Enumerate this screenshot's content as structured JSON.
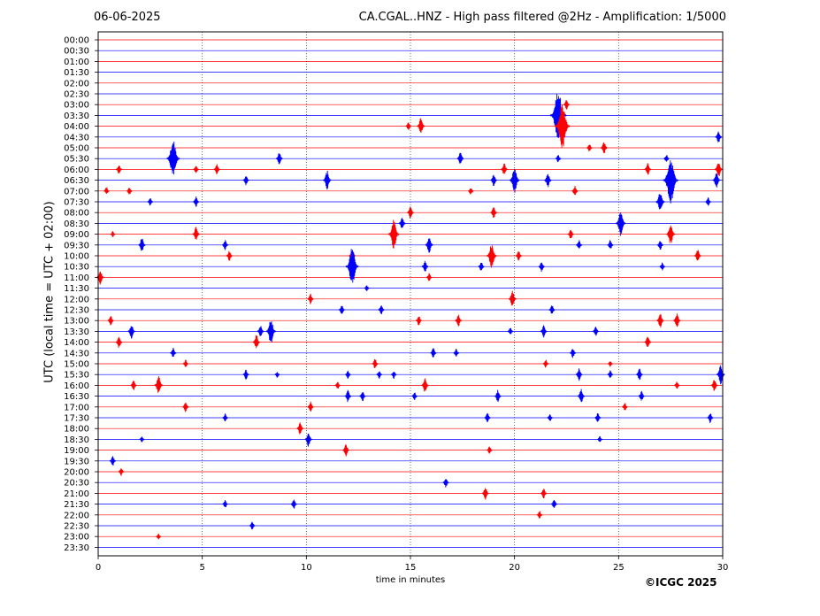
{
  "header": {
    "date": "06-06-2025",
    "title": "CA.CGAL..HNZ - High pass filtered @2Hz - Amplification: 1/5000"
  },
  "footer": {
    "copyright": "©ICGC 2025"
  },
  "chart_data": {
    "type": "line",
    "title": "CA.CGAL..HNZ - High pass filtered @2Hz - Amplification: 1/5000",
    "xlabel": "time in minutes",
    "ylabel": "UTC (local time = UTC + 02:00)",
    "xlim": [
      0,
      30
    ],
    "xticks": [
      0,
      5,
      10,
      15,
      20,
      25,
      30
    ],
    "grid": "vertical dotted lines at 5-minute intervals",
    "row_colors": [
      "#ff0000",
      "#0000ff"
    ],
    "rows": [
      "00:00",
      "00:30",
      "01:00",
      "01:30",
      "02:00",
      "02:30",
      "03:00",
      "03:30",
      "04:00",
      "04:30",
      "05:00",
      "05:30",
      "06:00",
      "06:30",
      "07:00",
      "07:30",
      "08:00",
      "08:30",
      "09:00",
      "09:30",
      "10:00",
      "10:30",
      "11:00",
      "11:30",
      "12:00",
      "12:30",
      "13:00",
      "13:30",
      "14:00",
      "14:30",
      "15:00",
      "15:30",
      "16:00",
      "16:30",
      "17:00",
      "17:30",
      "18:00",
      "18:30",
      "19:00",
      "19:30",
      "20:00",
      "20:30",
      "21:00",
      "21:30",
      "22:00",
      "22:30",
      "23:00",
      "23:30"
    ],
    "events": [
      {
        "row": "03:00",
        "minute": 22.5,
        "amplitude": 0.5
      },
      {
        "row": "03:30",
        "minute": 22.1,
        "amplitude": 2.4
      },
      {
        "row": "04:00",
        "minute": 14.9,
        "amplitude": 0.4
      },
      {
        "row": "04:00",
        "minute": 15.5,
        "amplitude": 0.8
      },
      {
        "row": "04:00",
        "minute": 22.3,
        "amplitude": 2.2
      },
      {
        "row": "04:30",
        "minute": 29.8,
        "amplitude": 0.6
      },
      {
        "row": "05:00",
        "minute": 23.6,
        "amplitude": 0.4
      },
      {
        "row": "05:00",
        "minute": 24.3,
        "amplitude": 0.6
      },
      {
        "row": "05:30",
        "minute": 3.6,
        "amplitude": 1.8
      },
      {
        "row": "05:30",
        "minute": 8.7,
        "amplitude": 0.6
      },
      {
        "row": "05:30",
        "minute": 17.4,
        "amplitude": 0.6
      },
      {
        "row": "05:30",
        "minute": 22.1,
        "amplitude": 0.4
      },
      {
        "row": "05:30",
        "minute": 27.3,
        "amplitude": 0.4
      },
      {
        "row": "06:00",
        "minute": 1.0,
        "amplitude": 0.5
      },
      {
        "row": "06:00",
        "minute": 4.7,
        "amplitude": 0.4
      },
      {
        "row": "06:00",
        "minute": 5.7,
        "amplitude": 0.5
      },
      {
        "row": "06:00",
        "minute": 19.5,
        "amplitude": 0.6
      },
      {
        "row": "06:00",
        "minute": 26.4,
        "amplitude": 0.6
      },
      {
        "row": "06:00",
        "minute": 29.8,
        "amplitude": 0.8
      },
      {
        "row": "06:30",
        "minute": 7.1,
        "amplitude": 0.5
      },
      {
        "row": "06:30",
        "minute": 11.0,
        "amplitude": 0.9
      },
      {
        "row": "06:30",
        "minute": 19.0,
        "amplitude": 0.6
      },
      {
        "row": "06:30",
        "minute": 20.0,
        "amplitude": 1.2
      },
      {
        "row": "06:30",
        "minute": 21.6,
        "amplitude": 0.7
      },
      {
        "row": "06:30",
        "minute": 27.5,
        "amplitude": 2.2
      },
      {
        "row": "06:30",
        "minute": 29.7,
        "amplitude": 0.8
      },
      {
        "row": "07:00",
        "minute": 0.4,
        "amplitude": 0.4
      },
      {
        "row": "07:00",
        "minute": 1.5,
        "amplitude": 0.4
      },
      {
        "row": "07:00",
        "minute": 17.9,
        "amplitude": 0.4
      },
      {
        "row": "07:00",
        "minute": 22.9,
        "amplitude": 0.5
      },
      {
        "row": "07:30",
        "minute": 2.5,
        "amplitude": 0.4
      },
      {
        "row": "07:30",
        "minute": 4.7,
        "amplitude": 0.5
      },
      {
        "row": "07:30",
        "minute": 27.0,
        "amplitude": 1.0
      },
      {
        "row": "07:30",
        "minute": 29.3,
        "amplitude": 0.4
      },
      {
        "row": "08:00",
        "minute": 15.0,
        "amplitude": 0.6
      },
      {
        "row": "08:00",
        "minute": 19.0,
        "amplitude": 0.6
      },
      {
        "row": "08:30",
        "minute": 14.6,
        "amplitude": 0.6
      },
      {
        "row": "08:30",
        "minute": 25.1,
        "amplitude": 1.2
      },
      {
        "row": "09:00",
        "minute": 0.7,
        "amplitude": 0.3
      },
      {
        "row": "09:00",
        "minute": 4.7,
        "amplitude": 0.7
      },
      {
        "row": "09:00",
        "minute": 14.2,
        "amplitude": 1.4
      },
      {
        "row": "09:00",
        "minute": 22.7,
        "amplitude": 0.5
      },
      {
        "row": "09:00",
        "minute": 27.5,
        "amplitude": 1.0
      },
      {
        "row": "09:30",
        "minute": 2.1,
        "amplitude": 0.7
      },
      {
        "row": "09:30",
        "minute": 6.1,
        "amplitude": 0.5
      },
      {
        "row": "09:30",
        "minute": 15.9,
        "amplitude": 0.8
      },
      {
        "row": "09:30",
        "minute": 23.1,
        "amplitude": 0.5
      },
      {
        "row": "09:30",
        "minute": 24.6,
        "amplitude": 0.5
      },
      {
        "row": "09:30",
        "minute": 27.0,
        "amplitude": 0.5
      },
      {
        "row": "10:00",
        "minute": 6.3,
        "amplitude": 0.5
      },
      {
        "row": "10:00",
        "minute": 12.2,
        "amplitude": 0.6
      },
      {
        "row": "10:00",
        "minute": 18.9,
        "amplitude": 1.2
      },
      {
        "row": "10:00",
        "minute": 20.2,
        "amplitude": 0.5
      },
      {
        "row": "10:00",
        "minute": 28.8,
        "amplitude": 0.6
      },
      {
        "row": "10:30",
        "minute": 12.2,
        "amplitude": 1.8
      },
      {
        "row": "10:30",
        "minute": 15.7,
        "amplitude": 0.6
      },
      {
        "row": "10:30",
        "minute": 18.4,
        "amplitude": 0.5
      },
      {
        "row": "10:30",
        "minute": 21.3,
        "amplitude": 0.5
      },
      {
        "row": "10:30",
        "minute": 27.1,
        "amplitude": 0.4
      },
      {
        "row": "11:00",
        "minute": 0.1,
        "amplitude": 0.7
      },
      {
        "row": "11:00",
        "minute": 15.9,
        "amplitude": 0.4
      },
      {
        "row": "11:30",
        "minute": 12.9,
        "amplitude": 0.3
      },
      {
        "row": "12:00",
        "minute": 10.2,
        "amplitude": 0.5
      },
      {
        "row": "12:00",
        "minute": 19.9,
        "amplitude": 0.8
      },
      {
        "row": "12:30",
        "minute": 11.7,
        "amplitude": 0.5
      },
      {
        "row": "12:30",
        "minute": 13.6,
        "amplitude": 0.5
      },
      {
        "row": "12:30",
        "minute": 21.8,
        "amplitude": 0.5
      },
      {
        "row": "13:00",
        "minute": 0.6,
        "amplitude": 0.5
      },
      {
        "row": "13:00",
        "minute": 15.4,
        "amplitude": 0.5
      },
      {
        "row": "13:00",
        "minute": 17.3,
        "amplitude": 0.6
      },
      {
        "row": "13:00",
        "minute": 27.0,
        "amplitude": 0.7
      },
      {
        "row": "13:00",
        "minute": 27.8,
        "amplitude": 0.7
      },
      {
        "row": "13:30",
        "minute": 1.6,
        "amplitude": 0.7
      },
      {
        "row": "13:30",
        "minute": 7.8,
        "amplitude": 0.6
      },
      {
        "row": "13:30",
        "minute": 8.3,
        "amplitude": 1.2
      },
      {
        "row": "13:30",
        "minute": 19.8,
        "amplitude": 0.4
      },
      {
        "row": "13:30",
        "minute": 21.4,
        "amplitude": 0.6
      },
      {
        "row": "13:30",
        "minute": 23.9,
        "amplitude": 0.5
      },
      {
        "row": "14:00",
        "minute": 1.0,
        "amplitude": 0.6
      },
      {
        "row": "14:00",
        "minute": 7.6,
        "amplitude": 0.7
      },
      {
        "row": "14:00",
        "minute": 26.4,
        "amplitude": 0.6
      },
      {
        "row": "14:30",
        "minute": 3.6,
        "amplitude": 0.5
      },
      {
        "row": "14:30",
        "minute": 16.1,
        "amplitude": 0.5
      },
      {
        "row": "14:30",
        "minute": 17.2,
        "amplitude": 0.4
      },
      {
        "row": "14:30",
        "minute": 22.8,
        "amplitude": 0.5
      },
      {
        "row": "15:00",
        "minute": 4.2,
        "amplitude": 0.4
      },
      {
        "row": "15:00",
        "minute": 13.3,
        "amplitude": 0.5
      },
      {
        "row": "15:00",
        "minute": 21.5,
        "amplitude": 0.4
      },
      {
        "row": "15:00",
        "minute": 24.6,
        "amplitude": 0.3
      },
      {
        "row": "15:30",
        "minute": 7.1,
        "amplitude": 0.5
      },
      {
        "row": "15:30",
        "minute": 8.6,
        "amplitude": 0.3
      },
      {
        "row": "15:30",
        "minute": 12.0,
        "amplitude": 0.4
      },
      {
        "row": "15:30",
        "minute": 13.5,
        "amplitude": 0.4
      },
      {
        "row": "15:30",
        "minute": 14.2,
        "amplitude": 0.4
      },
      {
        "row": "15:30",
        "minute": 23.1,
        "amplitude": 0.6
      },
      {
        "row": "15:30",
        "minute": 24.6,
        "amplitude": 0.4
      },
      {
        "row": "15:30",
        "minute": 26.0,
        "amplitude": 0.6
      },
      {
        "row": "15:30",
        "minute": 29.9,
        "amplitude": 0.9
      },
      {
        "row": "16:00",
        "minute": 1.7,
        "amplitude": 0.5
      },
      {
        "row": "16:00",
        "minute": 2.9,
        "amplitude": 0.9
      },
      {
        "row": "16:00",
        "minute": 11.5,
        "amplitude": 0.4
      },
      {
        "row": "16:00",
        "minute": 15.7,
        "amplitude": 0.7
      },
      {
        "row": "16:00",
        "minute": 27.8,
        "amplitude": 0.4
      },
      {
        "row": "16:00",
        "minute": 29.6,
        "amplitude": 0.6
      },
      {
        "row": "16:30",
        "minute": 12.0,
        "amplitude": 0.6
      },
      {
        "row": "16:30",
        "minute": 12.7,
        "amplitude": 0.5
      },
      {
        "row": "16:30",
        "minute": 15.2,
        "amplitude": 0.4
      },
      {
        "row": "16:30",
        "minute": 19.2,
        "amplitude": 0.6
      },
      {
        "row": "16:30",
        "minute": 23.2,
        "amplitude": 0.7
      },
      {
        "row": "16:30",
        "minute": 26.1,
        "amplitude": 0.5
      },
      {
        "row": "17:00",
        "minute": 4.2,
        "amplitude": 0.5
      },
      {
        "row": "17:00",
        "minute": 10.2,
        "amplitude": 0.5
      },
      {
        "row": "17:00",
        "minute": 25.3,
        "amplitude": 0.4
      },
      {
        "row": "17:30",
        "minute": 6.1,
        "amplitude": 0.4
      },
      {
        "row": "17:30",
        "minute": 18.7,
        "amplitude": 0.5
      },
      {
        "row": "17:30",
        "minute": 21.7,
        "amplitude": 0.4
      },
      {
        "row": "17:30",
        "minute": 24.0,
        "amplitude": 0.5
      },
      {
        "row": "17:30",
        "minute": 29.4,
        "amplitude": 0.5
      },
      {
        "row": "18:00",
        "minute": 9.7,
        "amplitude": 0.6
      },
      {
        "row": "18:30",
        "minute": 2.1,
        "amplitude": 0.3
      },
      {
        "row": "18:30",
        "minute": 10.1,
        "amplitude": 0.7
      },
      {
        "row": "18:30",
        "minute": 24.1,
        "amplitude": 0.3
      },
      {
        "row": "19:00",
        "minute": 11.9,
        "amplitude": 0.6
      },
      {
        "row": "19:00",
        "minute": 18.8,
        "amplitude": 0.4
      },
      {
        "row": "19:30",
        "minute": 0.7,
        "amplitude": 0.5
      },
      {
        "row": "20:00",
        "minute": 1.1,
        "amplitude": 0.4
      },
      {
        "row": "20:30",
        "minute": 16.7,
        "amplitude": 0.5
      },
      {
        "row": "21:00",
        "minute": 18.6,
        "amplitude": 0.6
      },
      {
        "row": "21:00",
        "minute": 21.4,
        "amplitude": 0.5
      },
      {
        "row": "21:30",
        "minute": 6.1,
        "amplitude": 0.4
      },
      {
        "row": "21:30",
        "minute": 9.4,
        "amplitude": 0.5
      },
      {
        "row": "21:30",
        "minute": 21.9,
        "amplitude": 0.5
      },
      {
        "row": "22:00",
        "minute": 21.2,
        "amplitude": 0.4
      },
      {
        "row": "22:30",
        "minute": 7.4,
        "amplitude": 0.4
      },
      {
        "row": "23:00",
        "minute": 2.9,
        "amplitude": 0.3
      }
    ]
  }
}
